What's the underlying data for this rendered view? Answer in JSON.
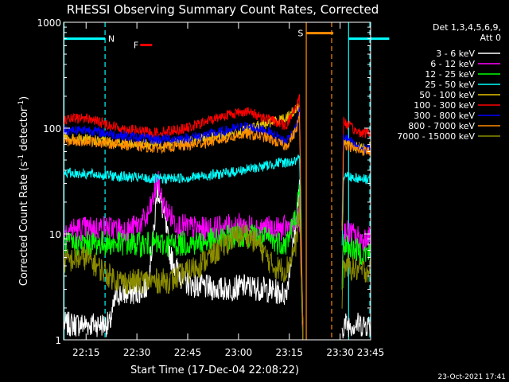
{
  "chart_data": {
    "type": "line",
    "title": "RHESSI Observing Summary Count Rates, Corrected",
    "xlabel": "Start Time (17-Dec-04 22:08:22)",
    "ylabel_main": "Corrected Count Rate (s",
    "ylabel_sup1": "-1",
    "ylabel_mid": " detector",
    "ylabel_sup2": "-1",
    "ylabel_end": ")",
    "y_scale": "log",
    "ylim": [
      1,
      1000
    ],
    "y_ticks": [
      {
        "value": 1,
        "label": "1"
      },
      {
        "value": 10,
        "label": "10"
      },
      {
        "value": 100,
        "label": "100"
      },
      {
        "value": 1000,
        "label": "1000"
      }
    ],
    "xlim_minutes": [
      8.37,
      99.0
    ],
    "x_ticks": [
      {
        "value": 15,
        "label": "22:15"
      },
      {
        "value": 30,
        "label": "22:30"
      },
      {
        "value": 45,
        "label": "22:45"
      },
      {
        "value": 60,
        "label": "23:00"
      },
      {
        "value": 75,
        "label": "23:15"
      },
      {
        "value": 90,
        "label": "23:30"
      },
      {
        "value": 105,
        "label": "23:45"
      }
    ],
    "legend_header": [
      "Det 1,3,4,5,6,9,",
      "Att 0"
    ],
    "legend_position": "right",
    "series": [
      {
        "name": "3 - 6 keV",
        "color": "#ffffff",
        "points": [
          [
            8.5,
            1.4
          ],
          [
            22,
            1.4
          ],
          [
            24,
            2.7
          ],
          [
            30,
            2.8
          ],
          [
            33,
            3.2
          ],
          [
            35,
            10
          ],
          [
            36,
            28
          ],
          [
            38,
            15
          ],
          [
            40,
            6
          ],
          [
            44,
            3.5
          ],
          [
            48,
            3.2
          ],
          [
            55,
            3.0
          ],
          [
            62,
            3.2
          ],
          [
            68,
            3.0
          ],
          [
            74,
            2.7
          ],
          [
            77,
            12
          ],
          [
            78,
            28
          ],
          [
            79,
            1
          ],
          [
            90,
            1
          ],
          [
            91,
            1.4
          ],
          [
            105,
            1.4
          ]
        ]
      },
      {
        "name": "6 - 12 keV",
        "color": "#ff00ff",
        "points": [
          [
            8.5,
            11
          ],
          [
            20,
            11.5
          ],
          [
            28,
            11
          ],
          [
            33,
            14
          ],
          [
            35,
            22
          ],
          [
            36,
            33
          ],
          [
            38,
            18
          ],
          [
            42,
            12
          ],
          [
            50,
            11
          ],
          [
            55,
            11.5
          ],
          [
            60,
            12
          ],
          [
            66,
            11.5
          ],
          [
            72,
            11
          ],
          [
            76,
            12
          ],
          [
            78,
            14
          ],
          [
            79,
            1
          ],
          [
            90,
            1
          ],
          [
            91,
            11
          ],
          [
            96,
            9
          ],
          [
            100,
            9
          ],
          [
            105,
            9
          ]
        ]
      },
      {
        "name": "12 - 25 keV",
        "color": "#00ff00",
        "points": [
          [
            8.5,
            8
          ],
          [
            20,
            8.2
          ],
          [
            30,
            8
          ],
          [
            40,
            8
          ],
          [
            50,
            8.4
          ],
          [
            58,
            9.5
          ],
          [
            62,
            10
          ],
          [
            68,
            9
          ],
          [
            74,
            8
          ],
          [
            77,
            15
          ],
          [
            78,
            25
          ],
          [
            79,
            1
          ],
          [
            90,
            1
          ],
          [
            91,
            8
          ],
          [
            97,
            6.5
          ],
          [
            102,
            7
          ],
          [
            105,
            7
          ]
        ]
      },
      {
        "name": "25 - 50 keV",
        "color": "#00ffff",
        "points": [
          [
            8.5,
            38
          ],
          [
            15,
            37
          ],
          [
            25,
            35
          ],
          [
            35,
            33
          ],
          [
            45,
            34
          ],
          [
            55,
            37
          ],
          [
            65,
            42
          ],
          [
            72,
            47
          ],
          [
            76,
            48
          ],
          [
            78,
            50
          ],
          [
            79,
            1
          ],
          [
            90,
            1
          ],
          [
            91,
            36
          ],
          [
            97,
            33
          ],
          [
            105,
            34
          ]
        ]
      },
      {
        "name": "50 - 100 keV",
        "color": "#e6c200",
        "points": [
          [
            8.5,
            80
          ],
          [
            15,
            78
          ],
          [
            25,
            72
          ],
          [
            35,
            70
          ],
          [
            45,
            75
          ],
          [
            55,
            85
          ],
          [
            62,
            95
          ],
          [
            68,
            110
          ],
          [
            74,
            125
          ],
          [
            78,
            160
          ],
          [
            79,
            1
          ],
          [
            90,
            1
          ],
          [
            91,
            75
          ],
          [
            95,
            66
          ],
          [
            100,
            66
          ],
          [
            105,
            68
          ]
        ]
      },
      {
        "name": "100 - 300 keV",
        "color": "#ff0000",
        "points": [
          [
            8.5,
            120
          ],
          [
            15,
            125
          ],
          [
            25,
            100
          ],
          [
            35,
            90
          ],
          [
            45,
            100
          ],
          [
            55,
            130
          ],
          [
            62,
            145
          ],
          [
            68,
            125
          ],
          [
            74,
            105
          ],
          [
            77,
            160
          ],
          [
            78,
            210
          ],
          [
            79,
            1
          ],
          [
            90,
            1
          ],
          [
            91,
            115
          ],
          [
            95,
            92
          ],
          [
            100,
            90
          ],
          [
            105,
            95
          ]
        ]
      },
      {
        "name": "300 - 800 keV",
        "color": "#0000ff",
        "points": [
          [
            8.5,
            95
          ],
          [
            15,
            97
          ],
          [
            25,
            85
          ],
          [
            35,
            78
          ],
          [
            45,
            80
          ],
          [
            55,
            92
          ],
          [
            62,
            104
          ],
          [
            68,
            95
          ],
          [
            74,
            75
          ],
          [
            77,
            100
          ],
          [
            78,
            150
          ],
          [
            79,
            1
          ],
          [
            90,
            1
          ],
          [
            91,
            85
          ],
          [
            95,
            65
          ],
          [
            100,
            63
          ],
          [
            105,
            63
          ]
        ]
      },
      {
        "name": "800 - 7000 keV",
        "color": "#ff8c00",
        "points": [
          [
            8.5,
            75
          ],
          [
            15,
            76
          ],
          [
            25,
            70
          ],
          [
            35,
            65
          ],
          [
            45,
            68
          ],
          [
            55,
            78
          ],
          [
            62,
            88
          ],
          [
            68,
            82
          ],
          [
            74,
            67
          ],
          [
            77,
            95
          ],
          [
            78,
            130
          ],
          [
            79,
            1
          ],
          [
            90,
            1
          ],
          [
            91,
            72
          ],
          [
            95,
            62
          ],
          [
            100,
            60
          ],
          [
            105,
            61
          ]
        ]
      },
      {
        "name": "7000 - 15000 keV",
        "color": "#8c8c00",
        "points": [
          [
            8.5,
            5.5
          ],
          [
            15,
            6
          ],
          [
            22,
            4
          ],
          [
            26,
            3.5
          ],
          [
            32,
            3.6
          ],
          [
            40,
            3.6
          ],
          [
            48,
            5
          ],
          [
            54,
            7
          ],
          [
            58,
            9
          ],
          [
            62,
            10
          ],
          [
            66,
            8
          ],
          [
            70,
            5
          ],
          [
            74,
            4.5
          ],
          [
            77,
            8
          ],
          [
            78,
            18
          ],
          [
            79,
            1
          ],
          [
            90,
            1
          ],
          [
            91,
            5
          ],
          [
            96,
            4.5
          ],
          [
            100,
            4.6
          ],
          [
            105,
            5
          ]
        ]
      }
    ],
    "bars": [
      {
        "color": "#00ffff",
        "label": "N",
        "segments": [
          [
            8.5,
            20.6
          ],
          [
            92.5,
            104.5
          ]
        ],
        "level": 700,
        "label_at": 21.5
      },
      {
        "color": "#ff0000",
        "label": "F",
        "segments": [
          [
            31,
            34.5
          ]
        ],
        "level": 610,
        "label_at": 29
      }
    ],
    "s_bar": {
      "color": "#ff8c00",
      "label": "S",
      "segment": [
        80,
        88
      ],
      "level": 790,
      "label_at": 77.5
    },
    "vlines": [
      {
        "x": 8.5,
        "color": "#00ffff",
        "style": "solid"
      },
      {
        "x": 20.6,
        "color": "#00ffff",
        "style": "dashed"
      },
      {
        "x": 80,
        "color": "#ff8c00",
        "style": "solid"
      },
      {
        "x": 87.5,
        "color": "#ff8c00",
        "style": "dashed"
      },
      {
        "x": 92.5,
        "color": "#00ffff",
        "style": "solid"
      },
      {
        "x": 104.5,
        "color": "#00ffff",
        "style": "dashed"
      }
    ],
    "footer_date": "23-Oct-2021 17:41"
  }
}
